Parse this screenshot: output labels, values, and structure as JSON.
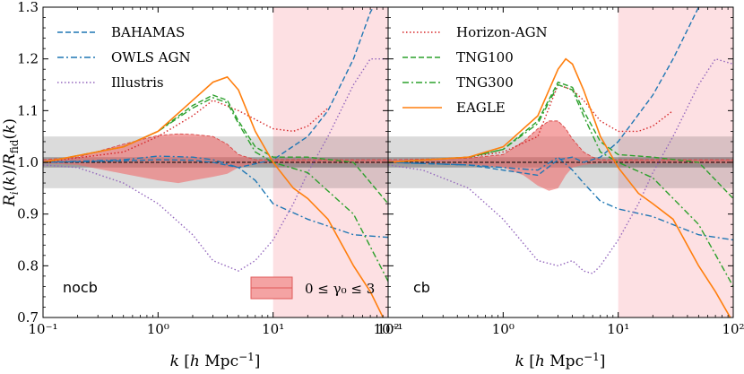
{
  "chart_data": {
    "type": "line",
    "xlabel": "k [h Mpc⁻¹]",
    "ylabel": "R_i(k) / R_fid(k)",
    "xscale": "log",
    "xlim": [
      0.1,
      100
    ],
    "ylim": [
      0.7,
      1.3
    ],
    "x_ticks": [
      "10⁻¹",
      "10⁰",
      "10¹",
      "10²"
    ],
    "y_ticks": [
      "0.7",
      "0.8",
      "0.9",
      "1.0",
      "1.1",
      "1.2",
      "1.3"
    ],
    "shaded_k_min": 10,
    "band_5pct": [
      0.95,
      1.05
    ],
    "band_1pct": [
      0.99,
      1.01
    ],
    "reference_line": 1.0,
    "fill_label": "0 ≤ γ₀ ≤ 3",
    "colors": {
      "BAHAMAS": "#1f77b4",
      "OWLS AGN": "#1f77b4",
      "Illustris": "#9467bd",
      "Horizon-AGN": "#d62728",
      "TNG100": "#2ca02c",
      "TNG300": "#2ca02c",
      "EAGLE": "#ff7f0e",
      "fill": "#f08080"
    },
    "legend_left": [
      "BAHAMAS",
      "OWLS AGN",
      "Illustris"
    ],
    "legend_right": [
      "Horizon-AGN",
      "TNG100",
      "TNG300",
      "EAGLE"
    ],
    "panels": [
      {
        "label": "nocb",
        "fill_band": {
          "x": [
            0.1,
            0.2,
            0.5,
            1.0,
            1.5,
            2.0,
            3.0,
            4.0,
            5.0,
            7.0,
            10,
            20,
            50,
            100
          ],
          "upper": [
            1.005,
            1.01,
            1.035,
            1.052,
            1.055,
            1.054,
            1.05,
            1.035,
            1.015,
            1.005,
            1.005,
            1.005,
            1.005,
            1.005
          ],
          "lower": [
            0.998,
            0.995,
            0.978,
            0.965,
            0.96,
            0.965,
            0.972,
            0.978,
            0.99,
            0.997,
            0.998,
            0.998,
            0.998,
            0.998
          ]
        },
        "series": [
          {
            "name": "BAHAMAS",
            "style": "dashed",
            "x": [
              0.1,
              0.5,
              1.0,
              2.0,
              3.0,
              5.0,
              10,
              20,
              30,
              50,
              70,
              100
            ],
            "y": [
              1.0,
              1.003,
              1.005,
              1.004,
              1.0,
              0.99,
              1.005,
              1.05,
              1.1,
              1.2,
              1.29,
              1.35
            ]
          },
          {
            "name": "OWLS AGN",
            "style": "dashdot",
            "x": [
              0.1,
              0.5,
              1.0,
              2.0,
              3.0,
              5.0,
              7.0,
              10,
              20,
              50,
              100
            ],
            "y": [
              1.0,
              1.005,
              1.012,
              1.01,
              1.005,
              0.99,
              0.965,
              0.92,
              0.89,
              0.86,
              0.855
            ]
          },
          {
            "name": "Illustris",
            "style": "dotted",
            "x": [
              0.1,
              0.2,
              0.5,
              1.0,
              2.0,
              3.0,
              5.0,
              7.0,
              10,
              15,
              20,
              30,
              50,
              70,
              100
            ],
            "y": [
              0.995,
              0.99,
              0.96,
              0.92,
              0.86,
              0.81,
              0.79,
              0.81,
              0.85,
              0.92,
              0.98,
              1.05,
              1.15,
              1.2,
              1.2
            ]
          },
          {
            "name": "Horizon-AGN",
            "style": "dotted",
            "x": [
              0.1,
              0.5,
              1.0,
              2.0,
              3.0,
              5.0,
              10,
              15,
              20,
              30
            ],
            "y": [
              1.0,
              1.02,
              1.05,
              1.09,
              1.12,
              1.1,
              1.065,
              1.06,
              1.07,
              1.105
            ]
          },
          {
            "name": "TNG100",
            "style": "dashed",
            "x": [
              0.1,
              0.5,
              1.0,
              2.0,
              3.0,
              4.0,
              5.0,
              7.0,
              10,
              20,
              50,
              100
            ],
            "y": [
              1.0,
              1.03,
              1.06,
              1.11,
              1.13,
              1.12,
              1.08,
              1.03,
              1.01,
              1.01,
              1.0,
              0.92
            ]
          },
          {
            "name": "TNG300",
            "style": "dashdot",
            "x": [
              0.1,
              0.5,
              1.0,
              2.0,
              3.0,
              4.0,
              5.0,
              7.0,
              10,
              20,
              50,
              100
            ],
            "y": [
              1.0,
              1.03,
              1.06,
              1.105,
              1.125,
              1.115,
              1.075,
              1.02,
              1.0,
              0.98,
              0.9,
              0.77
            ]
          },
          {
            "name": "EAGLE",
            "style": "solid",
            "x": [
              0.1,
              0.5,
              1.0,
              2.0,
              3.0,
              4.0,
              5.0,
              7.0,
              10,
              15,
              20,
              30,
              50,
              70,
              100
            ],
            "y": [
              1.0,
              1.03,
              1.06,
              1.12,
              1.155,
              1.165,
              1.14,
              1.06,
              1.0,
              0.95,
              0.93,
              0.89,
              0.8,
              0.75,
              0.68
            ]
          }
        ]
      },
      {
        "label": "cb",
        "fill_band": {
          "x": [
            0.1,
            0.5,
            1.0,
            1.5,
            2.0,
            2.5,
            3.0,
            3.5,
            4.0,
            5.0,
            6.0,
            7.0,
            10,
            20,
            50,
            100
          ],
          "upper": [
            1.005,
            1.008,
            1.015,
            1.04,
            1.065,
            1.08,
            1.08,
            1.065,
            1.045,
            1.02,
            1.01,
            1.005,
            1.005,
            1.005,
            1.005,
            1.005
          ],
          "lower": [
            0.998,
            0.996,
            0.99,
            0.975,
            0.955,
            0.945,
            0.95,
            0.975,
            0.99,
            0.995,
            0.997,
            0.998,
            0.998,
            0.998,
            0.998,
            0.998
          ]
        },
        "series": [
          {
            "name": "BAHAMAS",
            "style": "dashed",
            "x": [
              0.1,
              0.5,
              1.0,
              2.0,
              3.0,
              4.0,
              5.0,
              7.0,
              10,
              20,
              30,
              50,
              70,
              100
            ],
            "y": [
              1.0,
              0.995,
              0.985,
              0.975,
              1.005,
              1.01,
              1.0,
              1.01,
              1.04,
              1.13,
              1.2,
              1.3,
              1.35,
              1.4
            ]
          },
          {
            "name": "OWLS AGN",
            "style": "dashdot",
            "x": [
              0.1,
              0.5,
              1.0,
              2.0,
              3.0,
              4.0,
              5.0,
              7.0,
              10,
              20,
              50,
              100
            ],
            "y": [
              1.0,
              0.995,
              0.99,
              0.985,
              1.01,
              0.985,
              0.96,
              0.925,
              0.91,
              0.895,
              0.86,
              0.85
            ]
          },
          {
            "name": "Illustris",
            "style": "dotted",
            "x": [
              0.1,
              0.2,
              0.5,
              1.0,
              2.0,
              3.0,
              4.0,
              5.0,
              6.0,
              7.0,
              10,
              15,
              20,
              30,
              50,
              70,
              100
            ],
            "y": [
              0.995,
              0.985,
              0.95,
              0.89,
              0.81,
              0.8,
              0.81,
              0.79,
              0.785,
              0.8,
              0.85,
              0.92,
              0.98,
              1.05,
              1.15,
              1.2,
              1.19
            ]
          },
          {
            "name": "Horizon-AGN",
            "style": "dotted",
            "x": [
              0.1,
              0.5,
              1.0,
              2.0,
              3.0,
              4.0,
              5.0,
              7.0,
              10,
              15,
              20,
              30
            ],
            "y": [
              1.0,
              1.01,
              1.02,
              1.05,
              1.15,
              1.14,
              1.12,
              1.08,
              1.06,
              1.06,
              1.07,
              1.1
            ]
          },
          {
            "name": "TNG100",
            "style": "dashed",
            "x": [
              0.1,
              0.5,
              1.0,
              2.0,
              3.0,
              4.0,
              5.0,
              7.0,
              10,
              20,
              50,
              100
            ],
            "y": [
              1.0,
              1.01,
              1.025,
              1.08,
              1.155,
              1.145,
              1.1,
              1.04,
              1.015,
              1.01,
              1.0,
              0.93
            ]
          },
          {
            "name": "TNG300",
            "style": "dashdot",
            "x": [
              0.1,
              0.5,
              1.0,
              2.0,
              3.0,
              4.0,
              5.0,
              7.0,
              10,
              20,
              50,
              100
            ],
            "y": [
              1.0,
              1.01,
              1.025,
              1.075,
              1.15,
              1.14,
              1.09,
              1.02,
              1.0,
              0.97,
              0.88,
              0.76
            ]
          },
          {
            "name": "EAGLE",
            "style": "solid",
            "x": [
              0.1,
              0.5,
              1.0,
              2.0,
              3.0,
              3.5,
              4.0,
              5.0,
              7.0,
              10,
              15,
              20,
              30,
              50,
              70,
              100
            ],
            "y": [
              1.0,
              1.01,
              1.03,
              1.09,
              1.18,
              1.2,
              1.19,
              1.14,
              1.05,
              0.99,
              0.94,
              0.92,
              0.89,
              0.8,
              0.75,
              0.69
            ]
          }
        ]
      }
    ]
  }
}
